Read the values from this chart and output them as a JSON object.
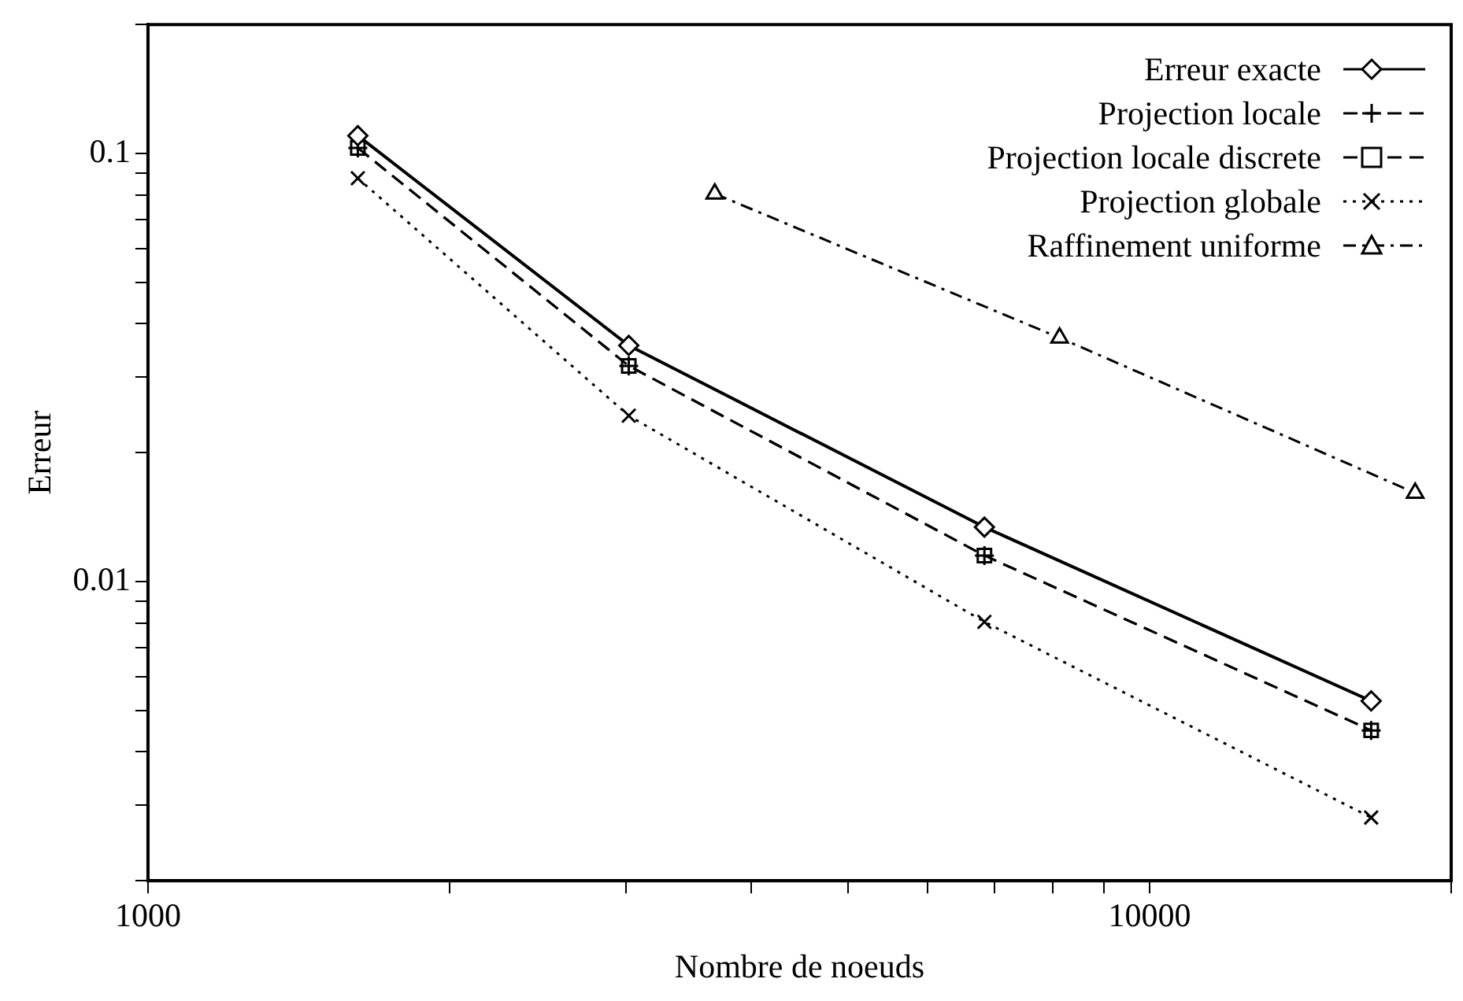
{
  "chart_data": {
    "type": "line",
    "xlabel": "Nombre de noeuds",
    "ylabel": "Erreur",
    "log": "xy",
    "grid": false,
    "legend": "top right",
    "xlim": [
      1000,
      20000
    ],
    "xticks": [
      1000,
      {
        "value": 2000,
        "label": null
      },
      {
        "value": 3000,
        "label": null
      },
      {
        "value": 4000,
        "label": null
      },
      {
        "value": 5000,
        "label": null
      },
      {
        "value": 6000,
        "label": null
      },
      {
        "value": 7000,
        "label": null
      },
      {
        "value": 8000,
        "label": null
      },
      {
        "value": 9000,
        "label": null
      },
      10000,
      {
        "value": 20000,
        "label": null
      }
    ],
    "ylim": [
      0.002,
      0.2
    ],
    "yticks": [
      {
        "value": 0.002,
        "label": null
      },
      {
        "value": 0.003,
        "label": null
      },
      {
        "value": 0.004,
        "label": null
      },
      {
        "value": 0.005,
        "label": null
      },
      {
        "value": 0.006,
        "label": null
      },
      {
        "value": 0.007,
        "label": null
      },
      {
        "value": 0.008,
        "label": null
      },
      {
        "value": 0.009,
        "label": null
      },
      0.01,
      {
        "value": 0.02,
        "label": null
      },
      {
        "value": 0.03,
        "label": null
      },
      {
        "value": 0.04,
        "label": null
      },
      {
        "value": 0.05,
        "label": null
      },
      {
        "value": 0.06,
        "label": null
      },
      {
        "value": 0.07,
        "label": null
      },
      {
        "value": 0.08,
        "label": null
      },
      {
        "value": 0.09,
        "label": null
      },
      0.1,
      {
        "value": 0.2,
        "label": null
      }
    ],
    "x": [
      1620,
      3020,
      6840,
      16640
    ],
    "series": [
      {
        "name": "Erreur exacte",
        "color": "#000000",
        "marker": "diamond",
        "line_style": "solid",
        "values": [
          0.11,
          0.0356,
          0.0134,
          0.00526
        ]
      },
      {
        "name": "Projection locale",
        "color": "#000000",
        "marker": "cross",
        "line_style": "dashed",
        "values": [
          0.103,
          0.0319,
          0.0115,
          0.00449
        ]
      },
      {
        "name": "Projection locale discrete",
        "color": "#000000",
        "marker": "square",
        "line_style": "dashed",
        "values": [
          0.103,
          0.0319,
          0.0115,
          0.00449
        ]
      },
      {
        "name": "Projection globale",
        "color": "#000000",
        "marker": "cross",
        "line_style": "dotted",
        "values": [
          0.0875,
          0.0244,
          0.00805,
          0.00281
        ]
      },
      {
        "name": "Raffinement uniforme",
        "color": "#000000",
        "marker": "triangle",
        "line_style": "dashed",
        "x": [
          3680,
          8130,
          18410
        ],
        "values": [
          0.0805,
          0.0371,
          0.0161
        ]
      }
    ]
  }
}
